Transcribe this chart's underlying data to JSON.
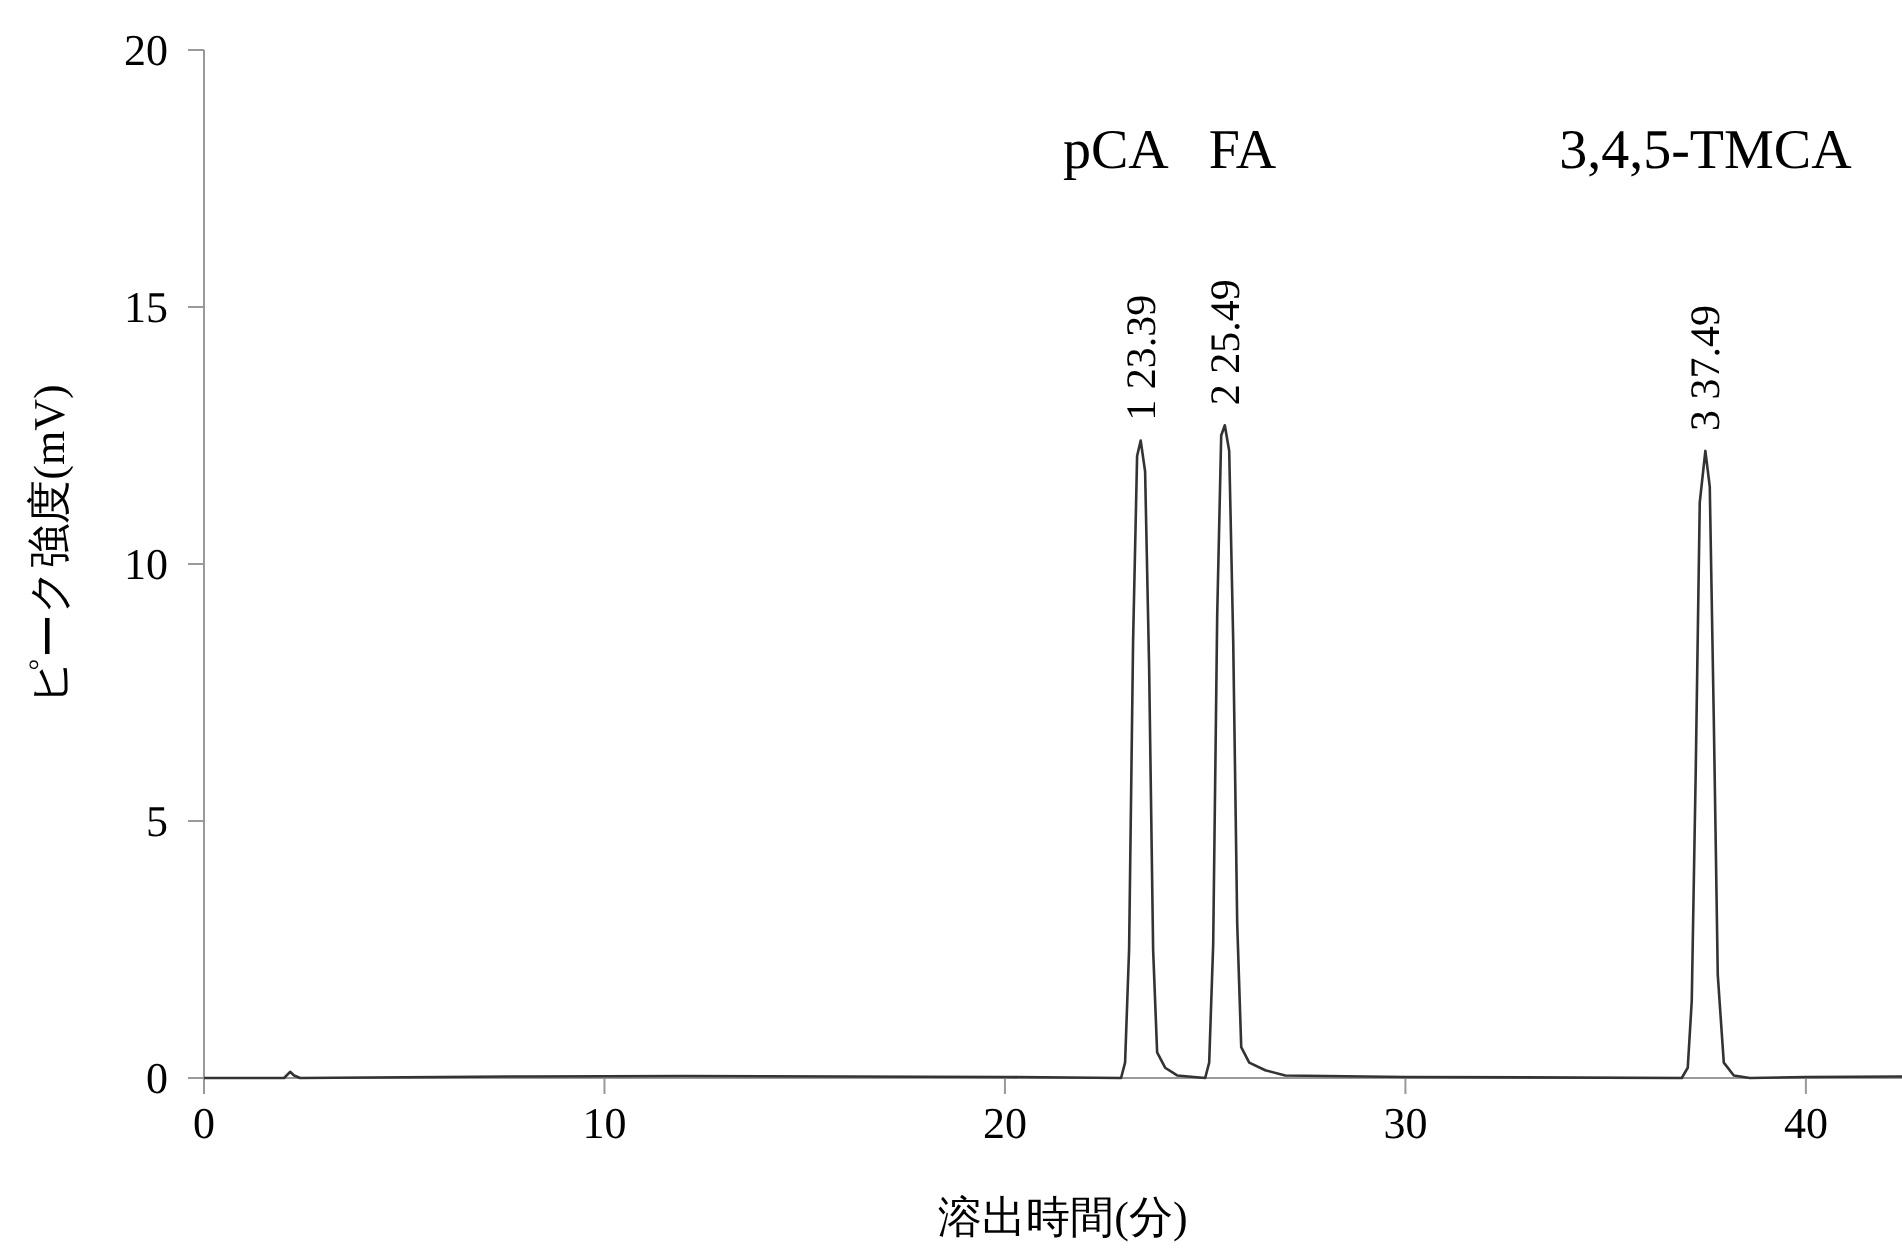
{
  "chart_data": {
    "type": "line",
    "xlabel": "溶出時間(分)",
    "ylabel": "ピーク強度(mV)",
    "xlim": [
      0,
      42.4
    ],
    "ylim": [
      0,
      20
    ],
    "xticks": [
      0,
      10,
      20,
      30,
      40
    ],
    "yticks": [
      0,
      5,
      10,
      15,
      20
    ],
    "grid": false,
    "marker": "none",
    "line_style": "solid",
    "series": [
      {
        "color": "#333333",
        "x": [
          0,
          2.0,
          2.15,
          2.25,
          2.4,
          8,
          12,
          20,
          22.9,
          23.0,
          23.1,
          23.2,
          23.3,
          23.39,
          23.5,
          23.6,
          23.7,
          23.8,
          24.0,
          24.3,
          25.0,
          25.1,
          25.2,
          25.3,
          25.4,
          25.49,
          25.6,
          25.7,
          25.8,
          25.9,
          26.1,
          26.5,
          27.0,
          30,
          36.9,
          37.05,
          37.15,
          37.25,
          37.35,
          37.49,
          37.6,
          37.7,
          37.8,
          37.95,
          38.2,
          38.6,
          40,
          42.4
        ],
        "values": [
          0,
          0,
          0.12,
          0.05,
          0,
          0.03,
          0.04,
          0.02,
          0,
          0.3,
          2.5,
          8.5,
          12.1,
          12.4,
          11.8,
          8,
          2.5,
          0.5,
          0.2,
          0.05,
          0,
          0.3,
          2.6,
          9,
          12.5,
          12.7,
          12.2,
          8.5,
          3,
          0.6,
          0.3,
          0.15,
          0.05,
          0.02,
          0,
          0.2,
          1.5,
          6,
          11.2,
          12.2,
          11.5,
          7,
          2,
          0.3,
          0.05,
          0,
          0.02,
          0.03
        ]
      }
    ],
    "annotations": [
      {
        "text": "1 23.39",
        "x": 23.39,
        "y": 12.4
      },
      {
        "text": "2 25.49",
        "x": 25.49,
        "y": 12.7
      },
      {
        "text": "3 37.49",
        "x": 37.49,
        "y": 12.2
      },
      "pCA",
      "FA",
      "3,4,5-TMCA"
    ]
  }
}
